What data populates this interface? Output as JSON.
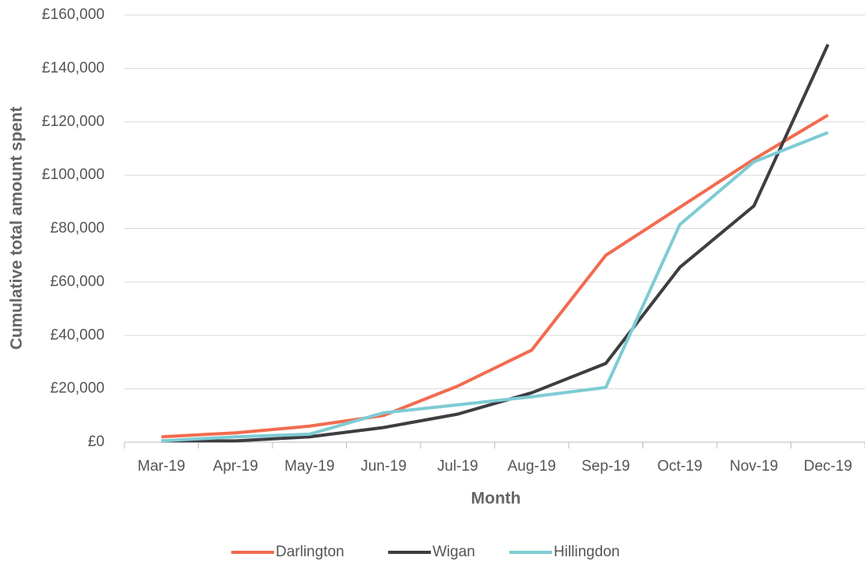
{
  "chart_data": {
    "type": "line",
    "x_label": "Month",
    "y_label": "Cumulative total amount spent",
    "categories": [
      "Mar-19",
      "Apr-19",
      "May-19",
      "Jun-19",
      "Jul-19",
      "Aug-19",
      "Sep-19",
      "Oct-19",
      "Nov-19",
      "Dec-19"
    ],
    "series": [
      {
        "name": "Darlington",
        "color": "#f26b4f",
        "values": [
          2000,
          3500,
          6000,
          10000,
          21000,
          34500,
          70000,
          88000,
          106000,
          122500
        ]
      },
      {
        "name": "Wigan",
        "color": "#3d3d42",
        "values": [
          500,
          500,
          2000,
          5500,
          10500,
          18500,
          29500,
          65500,
          88500,
          149000
        ]
      },
      {
        "name": "Hillingdon",
        "color": "#7ecbd3",
        "values": [
          500,
          2000,
          3000,
          11000,
          14000,
          17000,
          20500,
          81500,
          105000,
          116000
        ]
      }
    ],
    "ylim": [
      0,
      160000
    ],
    "yticks": [
      {
        "value": 0,
        "label": "£0"
      },
      {
        "value": 20000,
        "label": "£20,000"
      },
      {
        "value": 40000,
        "label": "£40,000"
      },
      {
        "value": 60000,
        "label": "£60,000"
      },
      {
        "value": 80000,
        "label": "£80,000"
      },
      {
        "value": 100000,
        "label": "£100,000"
      },
      {
        "value": 120000,
        "label": "£120,000"
      },
      {
        "value": 140000,
        "label": "£140,000"
      },
      {
        "value": 160000,
        "label": "£160,000"
      }
    ],
    "grid": true,
    "legend": "bottom"
  }
}
